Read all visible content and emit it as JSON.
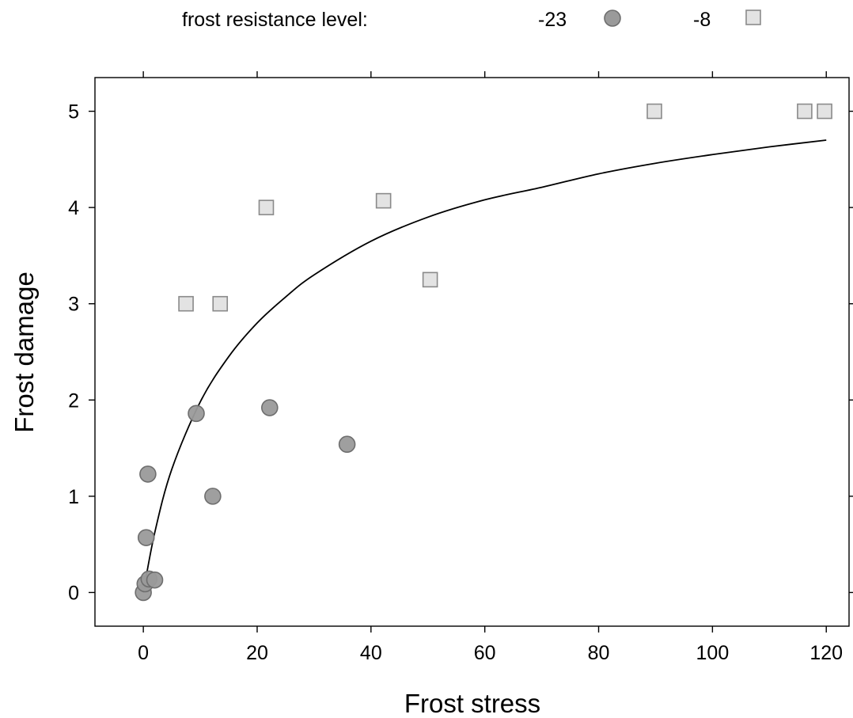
{
  "chart_data": {
    "type": "scatter",
    "title": "",
    "xlabel": "Frost stress",
    "ylabel": "Frost damage",
    "xlim": [
      -8.5,
      124
    ],
    "ylim": [
      -0.35,
      5.35
    ],
    "x_ticks": [
      0,
      20,
      40,
      60,
      80,
      100,
      120
    ],
    "y_ticks": [
      0,
      1,
      2,
      3,
      4,
      5
    ],
    "grid": false,
    "legend": {
      "title": "frost resistance level:",
      "placement": "top",
      "entries": [
        {
          "label": "-23",
          "marker": "circle"
        },
        {
          "label": "-8",
          "marker": "square"
        }
      ]
    },
    "series": [
      {
        "name": "-23",
        "marker": "circle",
        "fill": "#9a9a9a",
        "stroke": "#6e6e6e",
        "points": [
          {
            "x": 0.0,
            "y": 0.0
          },
          {
            "x": 0.3,
            "y": 0.09
          },
          {
            "x": 1.0,
            "y": 0.14
          },
          {
            "x": 2.0,
            "y": 0.13
          },
          {
            "x": 0.5,
            "y": 0.57
          },
          {
            "x": 0.8,
            "y": 1.23
          },
          {
            "x": 9.3,
            "y": 1.86
          },
          {
            "x": 12.2,
            "y": 1.0
          },
          {
            "x": 22.2,
            "y": 1.92
          },
          {
            "x": 35.8,
            "y": 1.54
          }
        ]
      },
      {
        "name": "-8",
        "marker": "square",
        "fill": "#e3e3e3",
        "stroke": "#8a8a8a",
        "points": [
          {
            "x": 7.5,
            "y": 3.0
          },
          {
            "x": 13.5,
            "y": 3.0
          },
          {
            "x": 21.6,
            "y": 4.0
          },
          {
            "x": 42.2,
            "y": 4.07
          },
          {
            "x": 50.4,
            "y": 3.25
          },
          {
            "x": 89.8,
            "y": 5.0
          },
          {
            "x": 116.2,
            "y": 5.0
          },
          {
            "x": 119.7,
            "y": 5.0
          }
        ]
      }
    ],
    "fitted_curve": {
      "description": "saturating fit",
      "color": "#000000",
      "points": [
        {
          "x": 0,
          "y": 0.0
        },
        {
          "x": 2,
          "y": 0.62
        },
        {
          "x": 5,
          "y": 1.28
        },
        {
          "x": 10,
          "y": 1.98
        },
        {
          "x": 15,
          "y": 2.45
        },
        {
          "x": 20,
          "y": 2.8
        },
        {
          "x": 25,
          "y": 3.07
        },
        {
          "x": 30,
          "y": 3.3
        },
        {
          "x": 40,
          "y": 3.65
        },
        {
          "x": 50,
          "y": 3.9
        },
        {
          "x": 60,
          "y": 4.08
        },
        {
          "x": 70,
          "y": 4.21
        },
        {
          "x": 80,
          "y": 4.35
        },
        {
          "x": 90,
          "y": 4.46
        },
        {
          "x": 100,
          "y": 4.55
        },
        {
          "x": 110,
          "y": 4.63
        },
        {
          "x": 120,
          "y": 4.7
        }
      ]
    }
  }
}
